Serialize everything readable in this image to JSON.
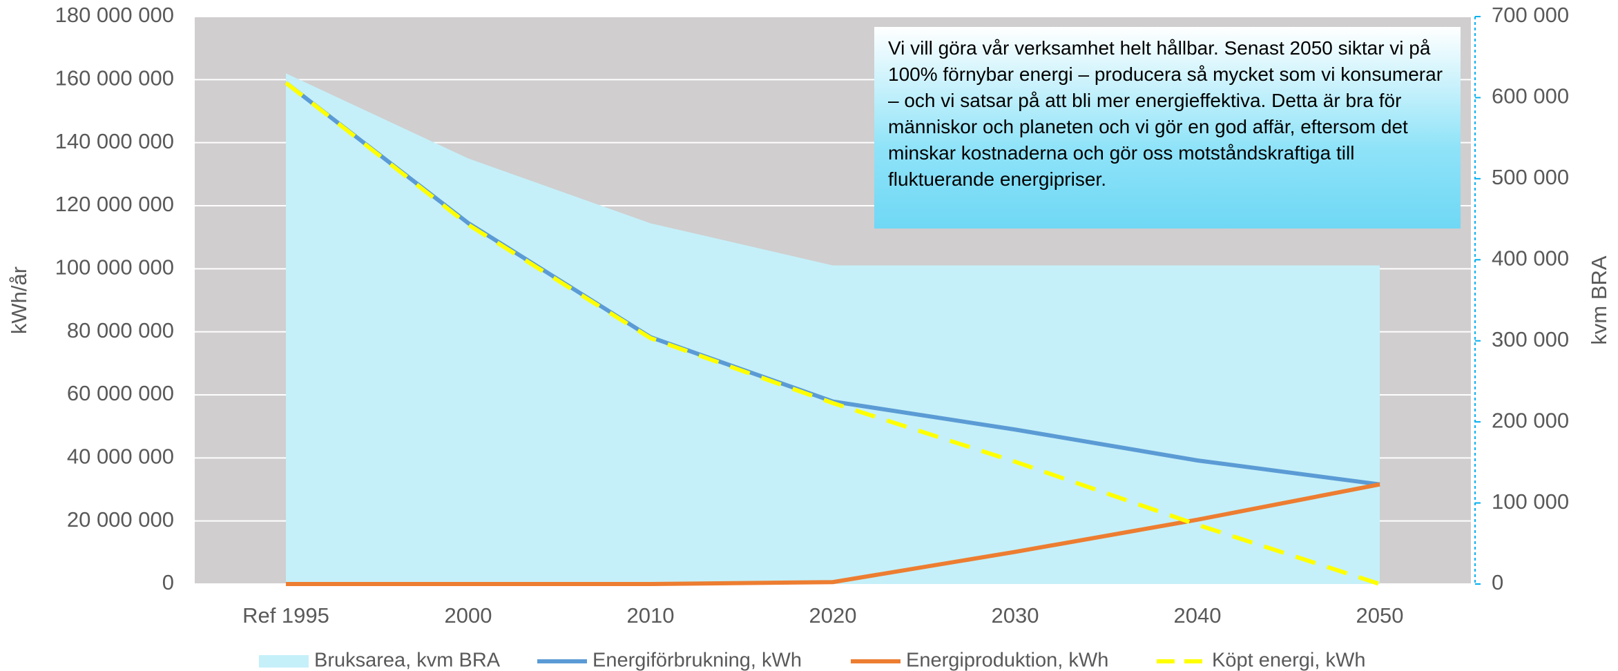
{
  "chart_data": {
    "type": "line",
    "categories": [
      "Ref 1995",
      "2000",
      "2010",
      "2020",
      "2030",
      "2040",
      "2050"
    ],
    "ylabel": "kWh/år",
    "y2label": "kvm BRA",
    "ylim": [
      0,
      180000000
    ],
    "yticks": [
      0,
      {
        "value": 20000000,
        "label": "20 000 000"
      },
      {
        "value": 40000000,
        "label": "40 000 000"
      },
      {
        "value": 60000000,
        "label": "60 000 000"
      },
      {
        "value": 80000000,
        "label": "80 000 000"
      },
      {
        "value": 100000000,
        "label": "100 000 000"
      },
      {
        "value": 120000000,
        "label": "120 000 000"
      },
      {
        "value": 140000000,
        "label": "140 000 000"
      },
      {
        "value": 160000000,
        "label": "160 000 000"
      },
      {
        "value": 180000000,
        "label": "180 000 000"
      }
    ],
    "y2lim": [
      0,
      700000
    ],
    "y2ticks": [
      0,
      {
        "value": 100000,
        "label": "100 000"
      },
      {
        "value": 200000,
        "label": "200 000"
      },
      {
        "value": 300000,
        "label": "300 000"
      },
      {
        "value": 400000,
        "label": "400 000"
      },
      {
        "value": 500000,
        "label": "500 000"
      },
      {
        "value": 600000,
        "label": "600 000"
      },
      {
        "value": 700000,
        "label": "700 000"
      }
    ],
    "grid": true,
    "background": "#d0cecf",
    "legend": "bottom",
    "annotation": "Vi vill göra vår verksamhet helt hållbar. Senast 2050 siktar vi på 100% förnybar energi – producera så mycket som vi konsumerar – och vi satsar på att bli mer energieffektiva. Detta är bra för människor och planeten och vi gör en  god affär, eftersom det minskar kostnaderna och gör oss motståndskraftiga till fluktuerande energipriser.",
    "series": [
      {
        "name": "Bruksarea, kvm BRA",
        "type": "area",
        "axis": "y2",
        "color": "#c5f0f9",
        "values": [
          630000,
          525000,
          445000,
          393000,
          393000,
          393000,
          393000
        ]
      },
      {
        "name": "Energiförbrukning, kWh",
        "type": "line",
        "color": "#5b9bd5",
        "values": [
          159000000,
          114500000,
          78300000,
          57900000,
          49000000,
          39200000,
          31600000
        ]
      },
      {
        "name": "Energiproduktion, kWh",
        "type": "line",
        "color": "#ed7d31",
        "values": [
          0,
          0,
          0,
          600000,
          10200000,
          20400000,
          31600000
        ]
      },
      {
        "name": "Köpt energi, kWh",
        "type": "dashed",
        "color": "#ffff00",
        "values": [
          159000000,
          114000000,
          78000000,
          57400000,
          38800000,
          18800000,
          0
        ]
      }
    ]
  }
}
